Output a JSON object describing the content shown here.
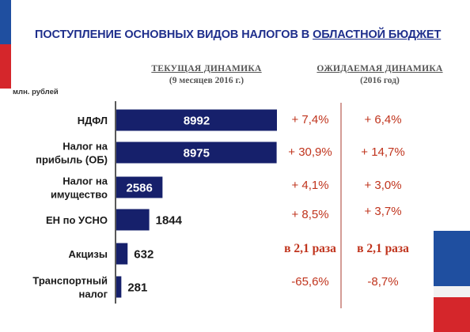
{
  "header": {
    "title_main": "ПОСТУПЛЕНИЕ ОСНОВНЫХ ВИДОВ НАЛОГОВ В ",
    "title_underlined": "ОБЛАСТНОЙ БЮДЖЕТ",
    "unit": "млн.  рублей"
  },
  "columns": {
    "current": {
      "title": "ТЕКУЩАЯ ДИНАМИКА",
      "subtitle": "(9 месяцев 2016 г.)"
    },
    "expected": {
      "title": "ОЖИДАЕМАЯ ДИНАМИКА",
      "subtitle": "(2016 год)"
    }
  },
  "colors": {
    "bar": "#16206b",
    "accent": "#c0341d",
    "title": "#1f2f8c",
    "flag_blue": "#1f4fa0",
    "flag_red": "#d5262b",
    "divider": "#a83a2c"
  },
  "chart_data": {
    "type": "bar",
    "orientation": "horizontal",
    "categories": [
      [
        "НДФЛ"
      ],
      [
        "Налог на",
        "прибыль (ОБ)"
      ],
      [
        "Налог на",
        "имущество"
      ],
      [
        "ЕН по УСНО"
      ],
      [
        "Акцизы"
      ],
      [
        "Транспортный",
        "налог"
      ]
    ],
    "values": [
      8992,
      8975,
      2586,
      1844,
      632,
      281
    ],
    "value_labels": [
      "8992",
      "8975",
      "2586",
      "1844",
      "632",
      "281"
    ],
    "current_dynamics": [
      "+ 7,4%",
      "+ 30,9%",
      "+ 4,1%",
      "+ 8,5%",
      "в 2,1 раза",
      "-65,6%"
    ],
    "expected_dynamics": [
      "+ 6,4%",
      "+ 14,7%",
      "+ 3,0%",
      "+ 3,7%",
      "в 2,1 раза",
      "-8,7%"
    ]
  }
}
